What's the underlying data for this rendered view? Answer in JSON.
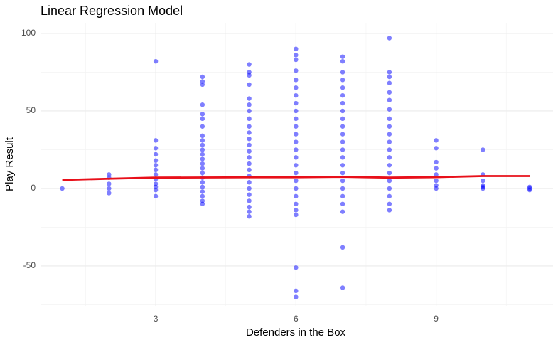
{
  "chart_data": {
    "type": "scatter",
    "title": "Linear Regression Model",
    "x_label": "Defenders in the Box",
    "y_label": "Play Result",
    "xlim": [
      0.55,
      11.5
    ],
    "ylim": [
      -75.7,
      106.4
    ],
    "xticks": [
      3,
      6,
      9
    ],
    "yticks": [
      -50,
      0,
      50,
      100
    ],
    "grid": true,
    "points": {
      "color": "#0000ff",
      "x": [
        1,
        2,
        2,
        2,
        2,
        2,
        3,
        3,
        3,
        3,
        3,
        3,
        3,
        3,
        3,
        3,
        3,
        3,
        3,
        4,
        4,
        4,
        4,
        4,
        4,
        4,
        4,
        4,
        4,
        4,
        4,
        4,
        4,
        4,
        4,
        4,
        4,
        4,
        4,
        4,
        4,
        4,
        5,
        5,
        5,
        5,
        5,
        5,
        5,
        5,
        5,
        5,
        5,
        5,
        5,
        5,
        5,
        5,
        5,
        5,
        5,
        5,
        5,
        5,
        5,
        5,
        6,
        6,
        6,
        6,
        6,
        6,
        6,
        6,
        6,
        6,
        6,
        6,
        6,
        6,
        6,
        6,
        6,
        6,
        6,
        6,
        6,
        6,
        6,
        6,
        6,
        6,
        7,
        7,
        7,
        7,
        7,
        7,
        7,
        7,
        7,
        7,
        7,
        7,
        7,
        7,
        7,
        7,
        7,
        7,
        7,
        7,
        7,
        7,
        7,
        8,
        8,
        8,
        8,
        8,
        8,
        8,
        8,
        8,
        8,
        8,
        8,
        8,
        8,
        8,
        8,
        8,
        8,
        8,
        8,
        9,
        9,
        9,
        9,
        9,
        9,
        9,
        9,
        10,
        10,
        10,
        10,
        10,
        10,
        11,
        11,
        11
      ],
      "y": [
        0,
        9,
        7,
        3,
        0,
        -3,
        82,
        31,
        26,
        22,
        18,
        15,
        12,
        9,
        6,
        3,
        1,
        -1,
        -5,
        72,
        69,
        67,
        54,
        48,
        45,
        40,
        34,
        31,
        28,
        25,
        22,
        19,
        16,
        13,
        10,
        7,
        4,
        1,
        -2,
        -5,
        -8,
        -10,
        80,
        75,
        73,
        67,
        58,
        54,
        50,
        45,
        40,
        36,
        32,
        28,
        24,
        20,
        16,
        12,
        8,
        4,
        0,
        -4,
        -8,
        -12,
        -15,
        -18,
        90,
        86,
        83,
        76,
        70,
        65,
        60,
        55,
        50,
        45,
        40,
        35,
        30,
        25,
        20,
        15,
        10,
        5,
        0,
        -5,
        -10,
        -14,
        -17,
        -51,
        -66,
        -70,
        85,
        82,
        75,
        70,
        65,
        60,
        55,
        50,
        45,
        40,
        35,
        30,
        25,
        20,
        15,
        10,
        5,
        0,
        -5,
        -10,
        -15,
        -38,
        -64,
        97,
        75,
        72,
        68,
        62,
        57,
        51,
        45,
        40,
        35,
        30,
        25,
        20,
        15,
        10,
        5,
        0,
        -5,
        -10,
        -14,
        31,
        26,
        17,
        13,
        9,
        5,
        2,
        0,
        25,
        9,
        5,
        2,
        1,
        0,
        1,
        0,
        -1
      ]
    },
    "fit_line": {
      "color": "#e8101a",
      "x": [
        1,
        2,
        3,
        4,
        5,
        6,
        7,
        8,
        9,
        10,
        11
      ],
      "y": [
        5.5,
        6.3,
        7.0,
        7.1,
        7.2,
        7.2,
        7.5,
        7.0,
        7.3,
        8.0,
        8.0
      ]
    }
  }
}
